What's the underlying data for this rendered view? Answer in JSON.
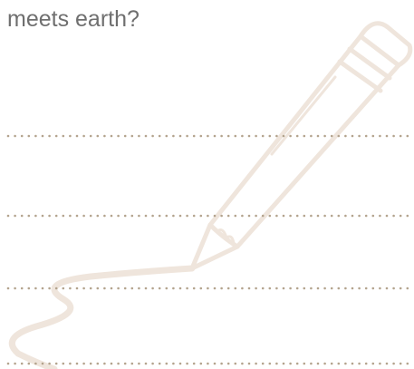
{
  "question": {
    "line2": "meets earth?"
  }
}
